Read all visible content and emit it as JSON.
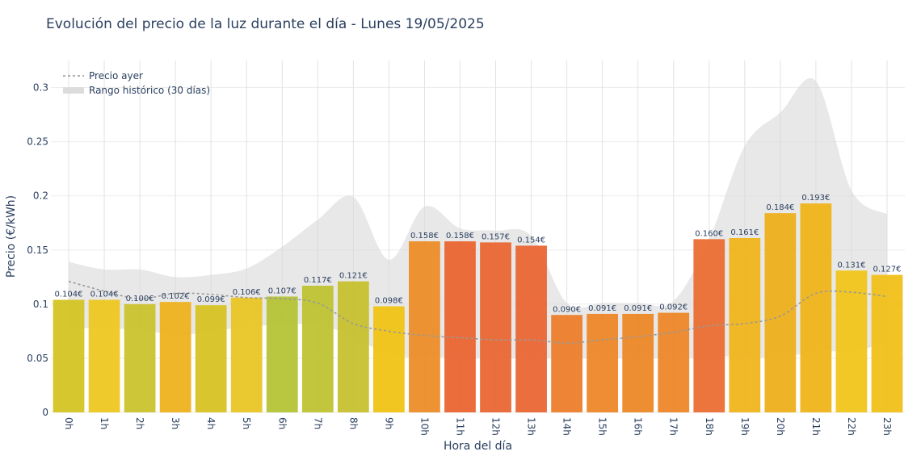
{
  "chart_data": {
    "type": "bar",
    "title": "Evolución del precio de la luz durante el día - Lunes 19/05/2025",
    "xlabel": "Hora del día",
    "ylabel": "Precio (€/kWh)",
    "ylim": [
      0,
      0.325
    ],
    "yticks": [
      "0",
      "0.05",
      "0.1",
      "0.15",
      "0.2",
      "0.25",
      "0.3"
    ],
    "ytick_values": [
      0,
      0.05,
      0.1,
      0.15,
      0.2,
      0.25,
      0.3
    ],
    "grid": true,
    "legend_position": "top-left",
    "categories": [
      "0h",
      "1h",
      "2h",
      "3h",
      "4h",
      "5h",
      "6h",
      "7h",
      "8h",
      "9h",
      "10h",
      "11h",
      "12h",
      "13h",
      "14h",
      "15h",
      "16h",
      "17h",
      "18h",
      "19h",
      "20h",
      "21h",
      "22h",
      "23h"
    ],
    "series": [
      {
        "values": [
          0.104,
          0.104,
          0.1,
          0.102,
          0.099,
          0.106,
          0.107,
          0.117,
          0.121,
          0.098,
          0.158,
          0.158,
          0.157,
          0.154,
          0.09,
          0.091,
          0.091,
          0.092,
          0.16,
          0.161,
          0.184,
          0.193,
          0.131,
          0.127
        ],
        "labels": [
          "0.104€",
          "0.104€",
          "0.100€",
          "0.102€",
          "0.099€",
          "0.106€",
          "0.107€",
          "0.117€",
          "0.121€",
          "0.098€",
          "0.158€",
          "0.158€",
          "0.157€",
          "0.154€",
          "0.090€",
          "0.091€",
          "0.091€",
          "0.092€",
          "0.160€",
          "0.161€",
          "0.184€",
          "0.193€",
          "0.131€",
          "0.127€"
        ],
        "colors": [
          "#d3c31f",
          "#edc61c",
          "#c9c22a",
          "#efb019",
          "#d6c21e",
          "#e8c41f",
          "#b3c232",
          "#bcc22d",
          "#c6bf2c",
          "#f0c20f",
          "#ed8b23",
          "#e9622d",
          "#ea642e",
          "#e9632f",
          "#ed7c27",
          "#ed8425",
          "#ed8524",
          "#ed8424",
          "#ea6b2e",
          "#f0b318",
          "#eead17",
          "#f0b316",
          "#f0c414",
          "#f0be13"
        ]
      },
      {
        "name": "Precio ayer",
        "values": [
          0.121,
          0.112,
          0.105,
          0.11,
          0.109,
          0.106,
          0.105,
          0.101,
          0.082,
          0.075,
          0.071,
          0.069,
          0.067,
          0.067,
          0.064,
          0.067,
          0.07,
          0.074,
          0.08,
          0.082,
          0.089,
          0.11,
          0.111,
          0.107
        ],
        "color": "#999999",
        "style": "dashed"
      },
      {
        "name": "Rango histórico (30 días)",
        "upper": [
          0.139,
          0.132,
          0.132,
          0.125,
          0.127,
          0.133,
          0.153,
          0.178,
          0.199,
          0.141,
          0.19,
          0.17,
          0.168,
          0.163,
          0.101,
          0.101,
          0.101,
          0.103,
          0.16,
          0.246,
          0.277,
          0.306,
          0.205,
          0.183
        ],
        "lower": [
          0.079,
          0.077,
          0.077,
          0.071,
          0.075,
          0.079,
          0.081,
          0.081,
          0.07,
          0.053,
          0.051,
          0.051,
          0.05,
          0.05,
          0.05,
          0.05,
          0.05,
          0.05,
          0.051,
          0.052,
          0.05,
          0.057,
          0.056,
          0.065
        ],
        "color": "#d8d8d8"
      }
    ]
  }
}
